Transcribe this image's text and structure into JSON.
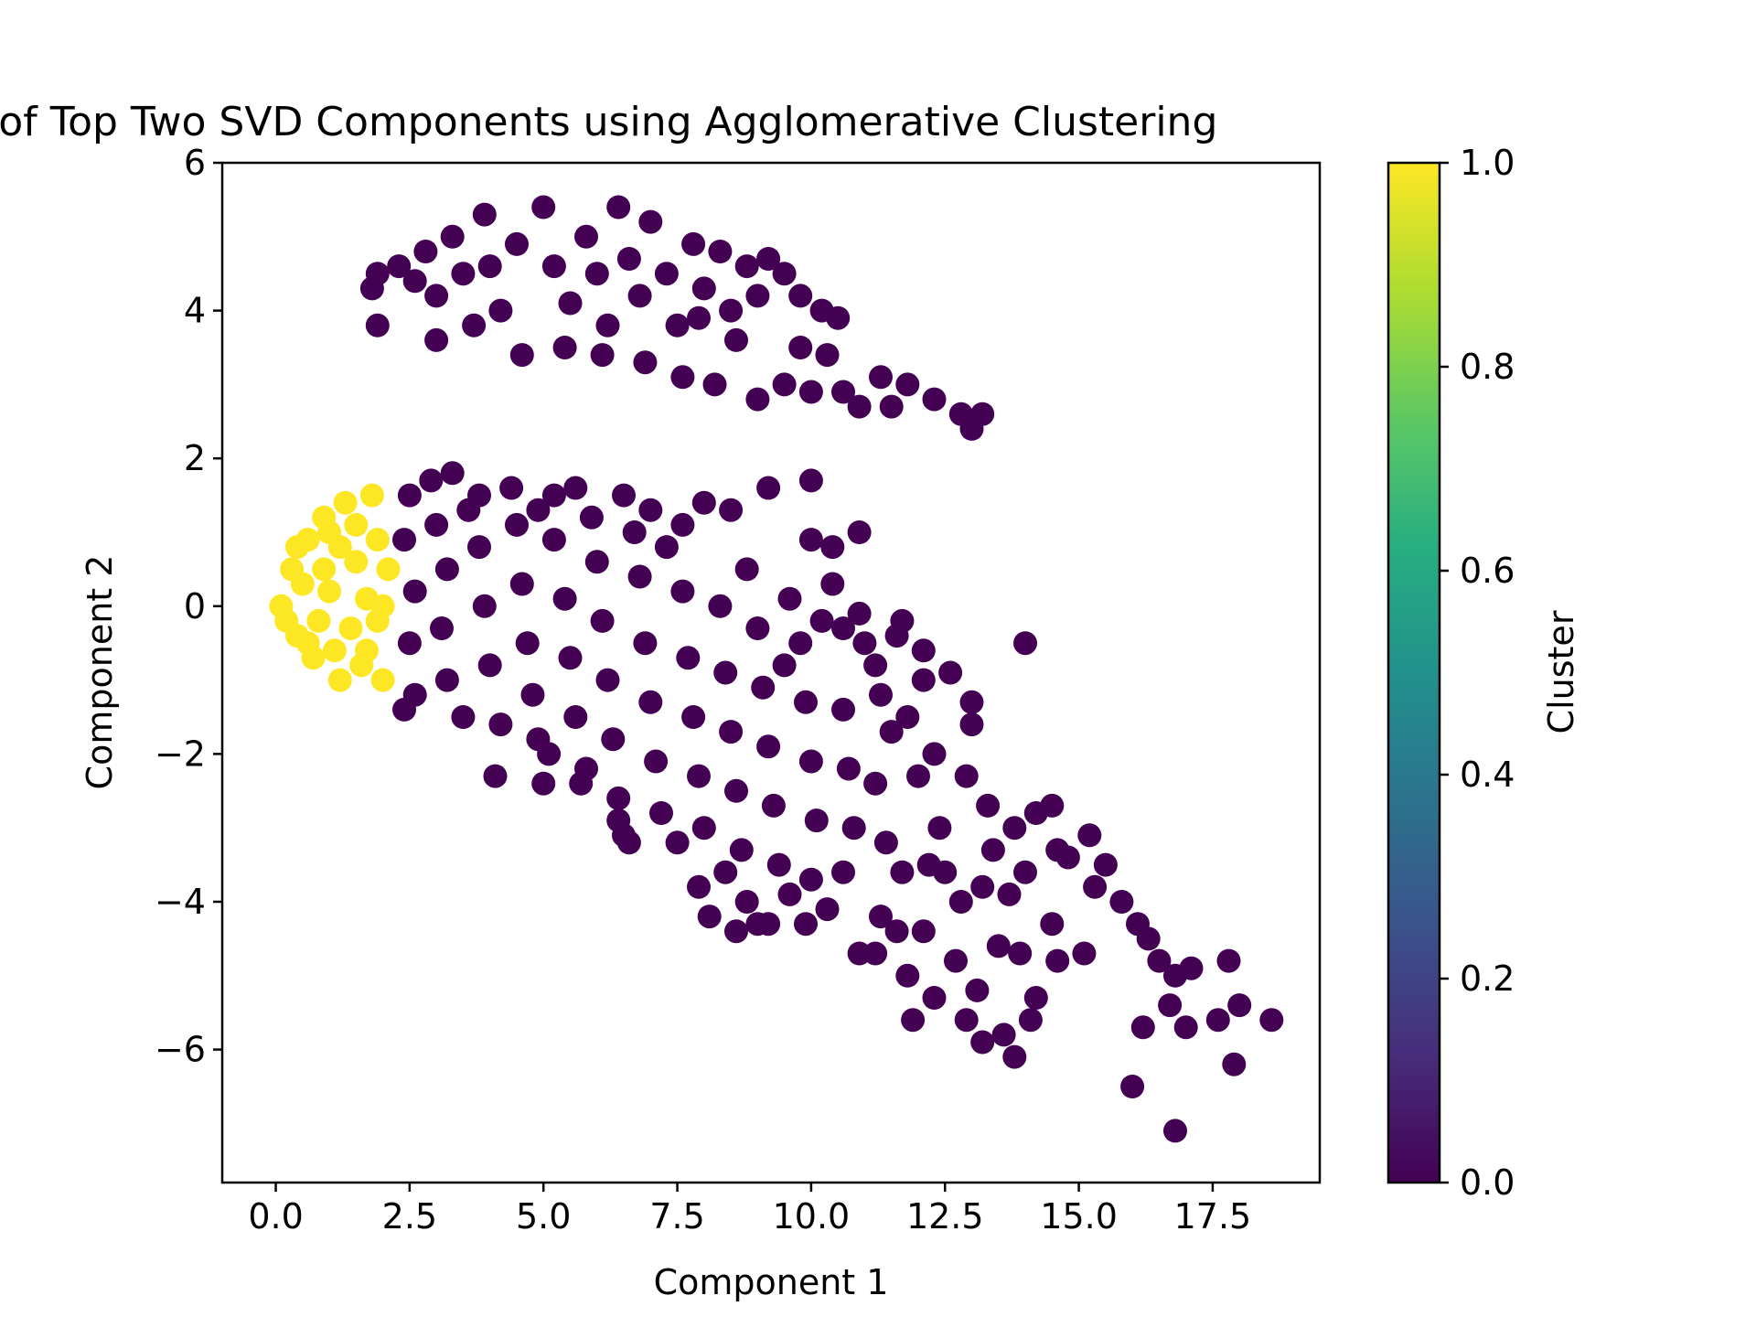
{
  "chart_data": {
    "type": "scatter",
    "title": "Scatter Plot of Top Two SVD Components using Agglomerative Clustering",
    "xlabel": "Component 1",
    "ylabel": "Component 2",
    "xlim": [
      -1.0,
      19.5
    ],
    "ylim": [
      -7.8,
      6.0
    ],
    "xticks": [
      0.0,
      2.5,
      5.0,
      7.5,
      10.0,
      12.5,
      15.0,
      17.5
    ],
    "xtick_labels": [
      "0.0",
      "2.5",
      "5.0",
      "7.5",
      "10.0",
      "12.5",
      "15.0",
      "17.5"
    ],
    "yticks": [
      6,
      4,
      2,
      0,
      -2,
      -4,
      -6
    ],
    "ytick_labels": [
      "6",
      "4",
      "2",
      "0",
      "−2",
      "−4",
      "−6"
    ],
    "grid": false,
    "colorbar": {
      "label": "Cluster",
      "colormap": "viridis",
      "range": [
        0.0,
        1.0
      ],
      "ticks": [
        0.0,
        0.2,
        0.4,
        0.6,
        0.8,
        1.0
      ],
      "tick_labels": [
        "0.0",
        "0.2",
        "0.4",
        "0.6",
        "0.8",
        "1.0"
      ]
    },
    "cluster_colors": {
      "0": "#440154",
      "1": "#fde725"
    },
    "series": [
      {
        "cluster": 1,
        "points": [
          [
            0.1,
            0.0
          ],
          [
            0.3,
            0.5
          ],
          [
            0.4,
            -0.4
          ],
          [
            0.6,
            0.9
          ],
          [
            0.7,
            -0.7
          ],
          [
            0.9,
            1.2
          ],
          [
            1.0,
            0.2
          ],
          [
            1.1,
            -0.6
          ],
          [
            1.3,
            1.4
          ],
          [
            1.5,
            0.6
          ],
          [
            1.6,
            -0.8
          ],
          [
            1.8,
            1.5
          ],
          [
            1.9,
            -0.2
          ],
          [
            2.0,
            -1.0
          ],
          [
            2.1,
            0.5
          ],
          [
            0.5,
            0.3
          ],
          [
            0.8,
            -0.2
          ],
          [
            1.2,
            0.8
          ],
          [
            1.4,
            -0.3
          ],
          [
            1.7,
            0.1
          ],
          [
            0.2,
            -0.2
          ],
          [
            0.6,
            -0.5
          ],
          [
            1.0,
            1.0
          ],
          [
            1.5,
            1.1
          ],
          [
            1.9,
            0.9
          ],
          [
            1.2,
            -1.0
          ],
          [
            0.4,
            0.8
          ],
          [
            1.7,
            -0.6
          ],
          [
            2.0,
            0.0
          ],
          [
            0.9,
            0.5
          ]
        ]
      },
      {
        "cluster": 0,
        "points": [
          [
            1.8,
            4.3
          ],
          [
            1.9,
            4.5
          ],
          [
            1.9,
            3.8
          ],
          [
            2.3,
            4.6
          ],
          [
            2.6,
            4.4
          ],
          [
            2.8,
            4.8
          ],
          [
            3.0,
            4.2
          ],
          [
            3.3,
            5.0
          ],
          [
            3.5,
            4.5
          ],
          [
            3.9,
            5.3
          ],
          [
            4.0,
            4.6
          ],
          [
            4.2,
            4.0
          ],
          [
            4.5,
            4.9
          ],
          [
            5.0,
            5.4
          ],
          [
            5.2,
            4.6
          ],
          [
            5.5,
            4.1
          ],
          [
            5.8,
            5.0
          ],
          [
            6.0,
            4.5
          ],
          [
            6.2,
            3.8
          ],
          [
            6.4,
            5.4
          ],
          [
            6.6,
            4.7
          ],
          [
            6.8,
            4.2
          ],
          [
            7.0,
            5.2
          ],
          [
            7.3,
            4.5
          ],
          [
            7.5,
            3.8
          ],
          [
            7.8,
            4.9
          ],
          [
            8.0,
            4.3
          ],
          [
            8.3,
            4.8
          ],
          [
            8.5,
            4.0
          ],
          [
            8.8,
            4.6
          ],
          [
            9.0,
            4.2
          ],
          [
            9.2,
            4.7
          ],
          [
            9.5,
            4.5
          ],
          [
            9.8,
            4.2
          ],
          [
            10.2,
            4.0
          ],
          [
            10.5,
            3.9
          ],
          [
            3.0,
            3.6
          ],
          [
            3.7,
            3.8
          ],
          [
            4.6,
            3.4
          ],
          [
            5.4,
            3.5
          ],
          [
            6.1,
            3.4
          ],
          [
            6.9,
            3.3
          ],
          [
            7.6,
            3.1
          ],
          [
            8.2,
            3.0
          ],
          [
            9.0,
            2.8
          ],
          [
            9.5,
            3.0
          ],
          [
            10.0,
            2.9
          ],
          [
            10.6,
            2.9
          ],
          [
            10.9,
            2.7
          ],
          [
            11.3,
            3.1
          ],
          [
            11.5,
            2.7
          ],
          [
            11.8,
            3.0
          ],
          [
            12.3,
            2.8
          ],
          [
            12.8,
            2.6
          ],
          [
            13.2,
            2.6
          ],
          [
            13.0,
            2.4
          ],
          [
            9.8,
            3.5
          ],
          [
            10.3,
            3.4
          ],
          [
            8.6,
            3.6
          ],
          [
            7.9,
            3.9
          ],
          [
            2.5,
            1.5
          ],
          [
            2.9,
            1.7
          ],
          [
            3.3,
            1.8
          ],
          [
            3.8,
            1.5
          ],
          [
            4.4,
            1.6
          ],
          [
            5.2,
            1.5
          ],
          [
            5.6,
            1.6
          ],
          [
            6.5,
            1.5
          ],
          [
            7.0,
            1.3
          ],
          [
            7.6,
            1.1
          ],
          [
            8.0,
            1.4
          ],
          [
            8.5,
            1.3
          ],
          [
            9.2,
            1.6
          ],
          [
            10.0,
            1.7
          ],
          [
            10.0,
            0.9
          ],
          [
            10.9,
            1.0
          ],
          [
            10.4,
            0.8
          ],
          [
            10.4,
            0.3
          ],
          [
            2.4,
            0.9
          ],
          [
            2.6,
            0.2
          ],
          [
            2.5,
            -0.5
          ],
          [
            2.6,
            -1.2
          ],
          [
            2.4,
            -1.4
          ],
          [
            3.0,
            1.1
          ],
          [
            3.2,
            0.5
          ],
          [
            3.1,
            -0.3
          ],
          [
            3.2,
            -1.0
          ],
          [
            3.5,
            -1.5
          ],
          [
            3.8,
            0.8
          ],
          [
            3.9,
            0.0
          ],
          [
            4.0,
            -0.8
          ],
          [
            4.2,
            -1.6
          ],
          [
            4.5,
            1.1
          ],
          [
            4.6,
            0.3
          ],
          [
            4.7,
            -0.5
          ],
          [
            4.8,
            -1.2
          ],
          [
            4.9,
            -1.8
          ],
          [
            5.0,
            -2.4
          ],
          [
            5.2,
            0.9
          ],
          [
            5.4,
            0.1
          ],
          [
            5.5,
            -0.7
          ],
          [
            5.6,
            -1.5
          ],
          [
            5.8,
            -2.2
          ],
          [
            6.0,
            0.6
          ],
          [
            6.1,
            -0.2
          ],
          [
            6.2,
            -1.0
          ],
          [
            6.3,
            -1.8
          ],
          [
            6.4,
            -2.6
          ],
          [
            6.5,
            -3.1
          ],
          [
            6.8,
            0.4
          ],
          [
            6.9,
            -0.5
          ],
          [
            7.0,
            -1.3
          ],
          [
            7.1,
            -2.1
          ],
          [
            7.2,
            -2.8
          ],
          [
            7.6,
            0.2
          ],
          [
            7.7,
            -0.7
          ],
          [
            7.8,
            -1.5
          ],
          [
            7.9,
            -2.3
          ],
          [
            8.0,
            -3.0
          ],
          [
            7.9,
            -3.8
          ],
          [
            8.3,
            0.0
          ],
          [
            8.4,
            -0.9
          ],
          [
            8.5,
            -1.7
          ],
          [
            8.6,
            -2.5
          ],
          [
            8.7,
            -3.3
          ],
          [
            8.8,
            -4.0
          ],
          [
            9.0,
            -0.3
          ],
          [
            9.1,
            -1.1
          ],
          [
            9.2,
            -1.9
          ],
          [
            9.3,
            -2.7
          ],
          [
            9.4,
            -3.5
          ],
          [
            9.2,
            -4.3
          ],
          [
            9.8,
            -0.5
          ],
          [
            9.9,
            -1.3
          ],
          [
            10.0,
            -2.1
          ],
          [
            10.1,
            -2.9
          ],
          [
            10.0,
            -3.7
          ],
          [
            9.9,
            -4.3
          ],
          [
            10.6,
            -0.3
          ],
          [
            10.6,
            -1.4
          ],
          [
            10.7,
            -2.2
          ],
          [
            10.8,
            -3.0
          ],
          [
            10.6,
            -3.6
          ],
          [
            10.9,
            -0.1
          ],
          [
            11.0,
            -0.5
          ],
          [
            11.3,
            -1.2
          ],
          [
            11.5,
            -1.7
          ],
          [
            11.2,
            -2.4
          ],
          [
            11.4,
            -3.2
          ],
          [
            11.7,
            -0.2
          ],
          [
            11.6,
            -0.4
          ],
          [
            11.8,
            -1.5
          ],
          [
            12.1,
            -0.6
          ],
          [
            12.1,
            -1.0
          ],
          [
            12.6,
            -0.9
          ],
          [
            12.3,
            -2.0
          ],
          [
            12.0,
            -2.3
          ],
          [
            12.4,
            -3.0
          ],
          [
            13.0,
            -1.3
          ],
          [
            13.0,
            -1.6
          ],
          [
            12.9,
            -2.3
          ],
          [
            13.3,
            -2.7
          ],
          [
            13.4,
            -3.3
          ],
          [
            14.0,
            -0.5
          ],
          [
            13.8,
            -3.0
          ],
          [
            14.2,
            -2.8
          ],
          [
            14.5,
            -2.7
          ],
          [
            14.6,
            -3.3
          ],
          [
            14.8,
            -3.4
          ],
          [
            15.2,
            -3.1
          ],
          [
            15.5,
            -3.5
          ],
          [
            15.3,
            -3.8
          ],
          [
            15.8,
            -4.0
          ],
          [
            16.1,
            -4.3
          ],
          [
            16.3,
            -4.5
          ],
          [
            16.5,
            -4.8
          ],
          [
            16.8,
            -5.0
          ],
          [
            17.1,
            -4.9
          ],
          [
            17.8,
            -4.8
          ],
          [
            16.7,
            -5.4
          ],
          [
            16.2,
            -5.7
          ],
          [
            16.0,
            -6.5
          ],
          [
            16.8,
            -7.1
          ],
          [
            17.0,
            -5.7
          ],
          [
            17.6,
            -5.6
          ],
          [
            17.9,
            -6.2
          ],
          [
            18.0,
            -5.4
          ],
          [
            18.6,
            -5.6
          ],
          [
            11.3,
            -4.2
          ],
          [
            11.6,
            -4.4
          ],
          [
            11.2,
            -4.7
          ],
          [
            12.1,
            -4.4
          ],
          [
            11.8,
            -5.0
          ],
          [
            11.9,
            -5.6
          ],
          [
            12.3,
            -5.3
          ],
          [
            12.7,
            -4.8
          ],
          [
            13.1,
            -5.2
          ],
          [
            12.9,
            -5.6
          ],
          [
            13.2,
            -5.9
          ],
          [
            13.6,
            -5.8
          ],
          [
            13.8,
            -6.1
          ],
          [
            14.1,
            -5.6
          ],
          [
            14.2,
            -5.3
          ],
          [
            13.5,
            -4.6
          ],
          [
            13.9,
            -4.7
          ],
          [
            14.5,
            -4.3
          ],
          [
            14.6,
            -4.8
          ],
          [
            15.1,
            -4.7
          ],
          [
            12.5,
            -3.6
          ],
          [
            12.8,
            -4.0
          ],
          [
            13.2,
            -3.8
          ],
          [
            13.7,
            -3.9
          ],
          [
            14.0,
            -3.6
          ],
          [
            10.9,
            -4.7
          ],
          [
            10.3,
            -4.1
          ],
          [
            9.6,
            -3.9
          ],
          [
            11.7,
            -3.6
          ],
          [
            12.2,
            -3.5
          ],
          [
            8.1,
            -4.2
          ],
          [
            8.6,
            -4.4
          ],
          [
            9.0,
            -4.3
          ],
          [
            8.4,
            -3.6
          ],
          [
            7.5,
            -3.2
          ],
          [
            6.4,
            -2.9
          ],
          [
            5.7,
            -2.4
          ],
          [
            4.1,
            -2.3
          ],
          [
            5.1,
            -2.0
          ],
          [
            6.6,
            -3.2
          ],
          [
            3.6,
            1.3
          ],
          [
            4.9,
            1.3
          ],
          [
            5.9,
            1.2
          ],
          [
            6.7,
            1.0
          ],
          [
            7.3,
            0.8
          ],
          [
            8.8,
            0.5
          ],
          [
            9.6,
            0.1
          ],
          [
            10.2,
            -0.2
          ],
          [
            11.2,
            -0.8
          ],
          [
            9.5,
            -0.8
          ]
        ]
      }
    ]
  }
}
